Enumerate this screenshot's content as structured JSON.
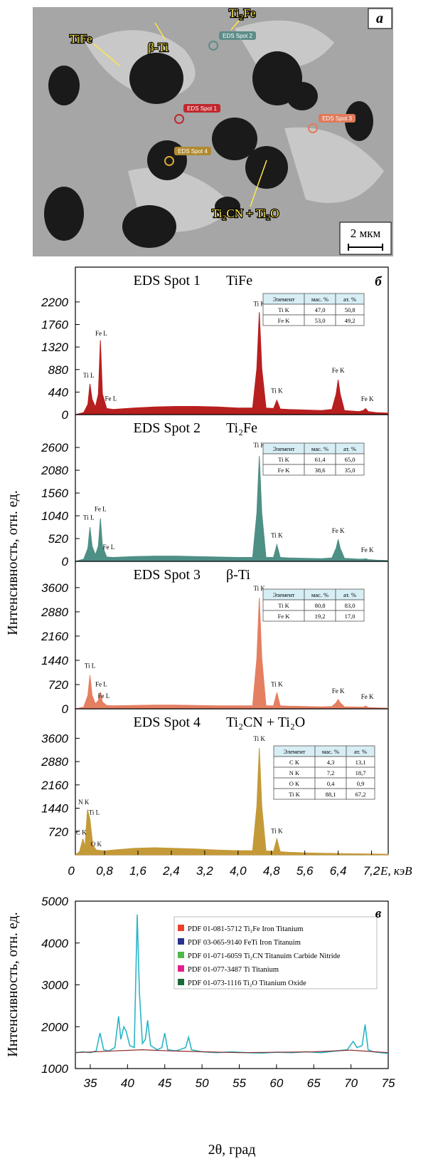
{
  "micrograph": {
    "labels": [
      "TiFe",
      "β-Ti",
      "Ti₂Fe",
      "Ti₂CN + Ti₂O"
    ],
    "spots": [
      "EDS Spot 1",
      "EDS Spot 2",
      "EDS Spot 3",
      "EDS Spot 4"
    ],
    "scale": "2 мкм",
    "panel": "а"
  },
  "eds_axes": {
    "ylabel": "Интенсивность, отн. ед.",
    "xlabel": "E, кэВ",
    "xlim": [
      0.1,
      7.6
    ],
    "xticks": [
      0,
      {
        "value": 0.8,
        "label": "0,8"
      },
      {
        "value": 1.6,
        "label": "1,6"
      },
      {
        "value": 2.4,
        "label": "2,4"
      },
      {
        "value": 3.2,
        "label": "3,2"
      },
      {
        "value": 4.0,
        "label": "4,0"
      },
      {
        "value": 4.8,
        "label": "4,8"
      },
      {
        "value": 5.6,
        "label": "5,6"
      },
      {
        "value": 6.4,
        "label": "6,4"
      },
      {
        "value": 7.2,
        "label": "7,2"
      }
    ]
  },
  "chart_data": [
    {
      "type": "area",
      "title": "EDS Spot 1",
      "subtitle": "TiFe",
      "label": "б",
      "color": "#b81f1f",
      "ylim": [
        0,
        2880
      ],
      "yticks": [
        0,
        440,
        880,
        1320,
        1760,
        2200
      ],
      "x": [
        0.1,
        0.3,
        0.4,
        0.45,
        0.5,
        0.58,
        0.65,
        0.7,
        0.75,
        0.85,
        1.0,
        1.5,
        2.0,
        2.5,
        3.0,
        3.5,
        4.0,
        4.35,
        4.45,
        4.51,
        4.57,
        4.67,
        4.85,
        4.93,
        5.01,
        5.2,
        5.6,
        6.0,
        6.25,
        6.35,
        6.4,
        6.45,
        6.55,
        6.9,
        7.0,
        7.06,
        7.12,
        7.3,
        7.6
      ],
      "values": [
        0,
        40,
        200,
        600,
        300,
        150,
        400,
        1450,
        400,
        120,
        100,
        130,
        150,
        160,
        160,
        150,
        130,
        130,
        900,
        2000,
        900,
        130,
        120,
        280,
        110,
        100,
        90,
        80,
        100,
        400,
        680,
        400,
        80,
        60,
        80,
        120,
        60,
        40,
        30
      ],
      "annotations": [
        "Ti L",
        "Fe L",
        "Fe L",
        "Ti K",
        "Ti K",
        "Fe K",
        "Fe K"
      ],
      "table": {
        "columns": [
          "Элемент",
          "мас. %",
          "ат. %"
        ],
        "rows": [
          [
            "Ti K",
            "47,0",
            "50,8"
          ],
          [
            "Fe K",
            "53,0",
            "49,2"
          ]
        ]
      }
    },
    {
      "type": "area",
      "title": "EDS Spot 2",
      "subtitle": "Ti₂Fe",
      "color": "#4e8f86",
      "ylim": [
        0,
        3350
      ],
      "yticks": [
        0,
        520,
        1040,
        1560,
        2080,
        2600
      ],
      "x": [
        0.1,
        0.3,
        0.4,
        0.45,
        0.5,
        0.58,
        0.65,
        0.7,
        0.75,
        0.85,
        1.0,
        1.5,
        2.0,
        2.5,
        3.0,
        3.5,
        4.0,
        4.35,
        4.45,
        4.51,
        4.57,
        4.67,
        4.85,
        4.93,
        5.01,
        5.2,
        5.6,
        6.0,
        6.25,
        6.35,
        6.4,
        6.45,
        6.55,
        6.9,
        7.0,
        7.06,
        7.12,
        7.3,
        7.6
      ],
      "values": [
        0,
        50,
        300,
        780,
        350,
        150,
        350,
        980,
        350,
        100,
        90,
        110,
        120,
        120,
        110,
        100,
        90,
        90,
        1100,
        2400,
        1100,
        90,
        90,
        380,
        90,
        80,
        70,
        60,
        80,
        300,
        500,
        300,
        70,
        50,
        50,
        60,
        40,
        30,
        20
      ],
      "annotations": [
        "Ti L",
        "Fe L",
        "Fe L",
        "Ti K",
        "Ti K",
        "Fe K",
        "Fe K"
      ],
      "table": {
        "columns": [
          "Элемент",
          "мас. %",
          "ат. %"
        ],
        "rows": [
          [
            "Ti K",
            "61,4",
            "65,0"
          ],
          [
            "Fe K",
            "38,6",
            "35,0"
          ]
        ]
      }
    },
    {
      "type": "area",
      "title": "EDS Spot 3",
      "subtitle": "β-Ti",
      "color": "#e57f62",
      "ylim": [
        0,
        4380
      ],
      "yticks": [
        0,
        720,
        1440,
        2160,
        2880,
        3600
      ],
      "x": [
        0.1,
        0.3,
        0.4,
        0.45,
        0.5,
        0.58,
        0.65,
        0.7,
        0.75,
        0.85,
        1.0,
        1.5,
        2.0,
        2.5,
        3.0,
        3.5,
        4.0,
        4.35,
        4.45,
        4.51,
        4.57,
        4.67,
        4.85,
        4.93,
        5.01,
        5.2,
        5.6,
        6.0,
        6.25,
        6.35,
        6.4,
        6.45,
        6.55,
        6.9,
        7.0,
        7.06,
        7.12,
        7.3,
        7.6
      ],
      "values": [
        0,
        50,
        400,
        1000,
        400,
        150,
        250,
        500,
        200,
        100,
        90,
        100,
        110,
        110,
        100,
        90,
        90,
        90,
        1500,
        3300,
        1500,
        90,
        90,
        480,
        90,
        80,
        70,
        60,
        70,
        180,
        280,
        180,
        60,
        50,
        50,
        80,
        40,
        30,
        20
      ],
      "annotations": [
        "Ti L",
        "Fe L",
        "Fe L",
        "Ti K",
        "Ti K",
        "Fe K",
        "Fe K"
      ],
      "table": {
        "columns": [
          "Элемент",
          "мас. %",
          "ат. %"
        ],
        "rows": [
          [
            "Ti K",
            "80,8",
            "83,0"
          ],
          [
            "Fe K",
            "19,2",
            "17,0"
          ]
        ]
      }
    },
    {
      "type": "area",
      "title": "EDS Spot 4",
      "subtitle": "Ti₂CN + Ti₂O",
      "color": "#c49a38",
      "ylim": [
        0,
        4510
      ],
      "yticks": [
        720,
        1440,
        2160,
        2880,
        3600
      ],
      "x": [
        0.1,
        0.2,
        0.28,
        0.33,
        0.39,
        0.45,
        0.52,
        0.6,
        0.8,
        1.0,
        1.5,
        2.0,
        2.5,
        3.0,
        3.5,
        4.0,
        4.35,
        4.45,
        4.51,
        4.57,
        4.67,
        4.85,
        4.93,
        5.01,
        5.2,
        5.6,
        6.0,
        6.5,
        7.0,
        7.6
      ],
      "values": [
        0,
        100,
        500,
        250,
        1400,
        1100,
        300,
        150,
        120,
        150,
        200,
        220,
        200,
        180,
        150,
        130,
        130,
        1500,
        3300,
        1500,
        120,
        110,
        500,
        100,
        80,
        60,
        50,
        40,
        30,
        20
      ],
      "annotations": [
        "N K",
        "Ti L",
        "C K",
        "O K",
        "Ti K",
        "Ti K"
      ],
      "table": {
        "columns": [
          "Элемент",
          "мас. %",
          "ат. %"
        ],
        "rows": [
          [
            "C K",
            "4,3",
            "13,1"
          ],
          [
            "N K",
            "7,2",
            "18,7"
          ],
          [
            "O K",
            "0,4",
            "0,9"
          ],
          [
            "Ti K",
            "88,1",
            "67,2"
          ]
        ]
      }
    },
    {
      "type": "line",
      "label": "в",
      "xlabel": "2θ, град",
      "ylabel": "Интенсивность, отн. ед.",
      "xlim": [
        33,
        75
      ],
      "ylim": [
        1000,
        5000
      ],
      "xticks": [
        35,
        40,
        45,
        50,
        55,
        60,
        65,
        70,
        75
      ],
      "yticks": [
        1000,
        2000,
        3000,
        4000,
        5000
      ],
      "series": [
        {
          "color": "#2ab5c8",
          "x": [
            33,
            34,
            35,
            35.8,
            36.3,
            36.8,
            37.5,
            38.3,
            38.8,
            39.1,
            39.5,
            39.8,
            40.3,
            40.9,
            41.3,
            41.6,
            42.0,
            42.4,
            42.7,
            43.1,
            44.0,
            44.6,
            45.0,
            45.4,
            46.5,
            47.8,
            48.2,
            48.6,
            50,
            52,
            54,
            56,
            58,
            60,
            62,
            64,
            66,
            68,
            69.5,
            70.3,
            70.8,
            71.5,
            71.9,
            72.3,
            73,
            74,
            75
          ],
          "values": [
            1380,
            1400,
            1380,
            1420,
            1850,
            1450,
            1420,
            1500,
            2250,
            1700,
            2000,
            1900,
            1550,
            1500,
            4680,
            2800,
            1600,
            1700,
            2150,
            1550,
            1450,
            1500,
            1850,
            1450,
            1420,
            1500,
            1750,
            1450,
            1400,
            1380,
            1400,
            1380,
            1370,
            1390,
            1380,
            1400,
            1380,
            1420,
            1450,
            1650,
            1500,
            1550,
            2050,
            1450,
            1400,
            1380,
            1360
          ]
        },
        {
          "color": "#8b2a2a",
          "x": [
            33,
            38,
            42,
            46,
            55,
            65,
            70,
            75
          ],
          "values": [
            1380,
            1420,
            1450,
            1420,
            1380,
            1400,
            1440,
            1380
          ]
        }
      ],
      "legend": [
        {
          "label": "PDF 01-081-5712 Ti₂Fe Iron Titanium",
          "color": "#e8422a"
        },
        {
          "label": "PDF 03-065-9140 FeTi Iron Titanuim",
          "color": "#2c3190"
        },
        {
          "label": "PDF 01-071-6059 Ti₂CN Titanuim Carbide Nitride",
          "color": "#4fb848"
        },
        {
          "label": "PDF 01-077-3487 Ti Titanium",
          "color": "#e0208a"
        },
        {
          "label": "PDF 01-073-1116 Ti₂O Titanium Oxide",
          "color": "#1a6a3a"
        }
      ]
    }
  ]
}
